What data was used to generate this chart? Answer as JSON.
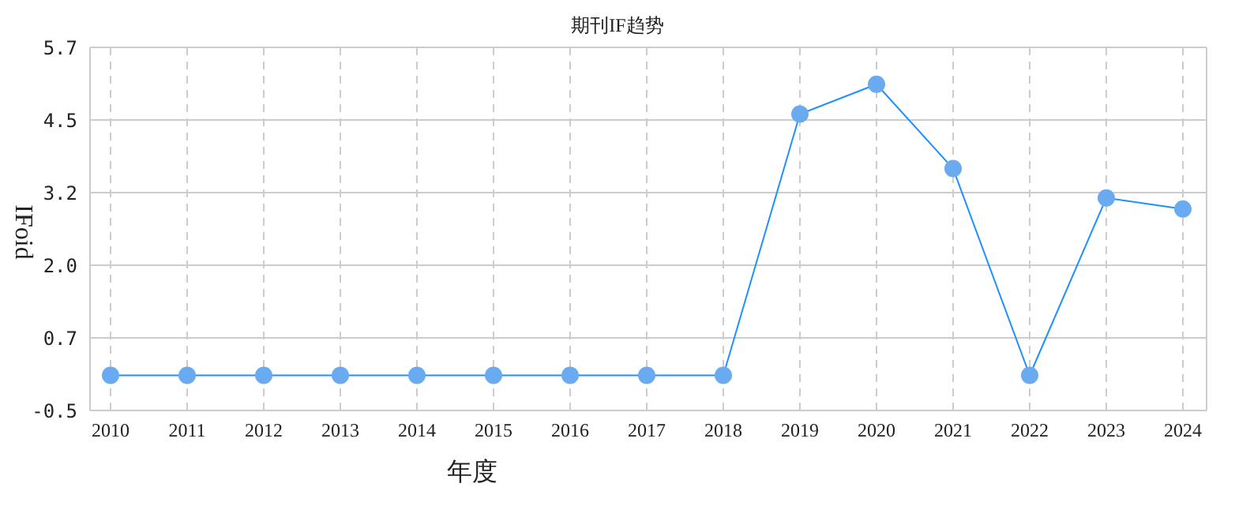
{
  "chart_data": {
    "type": "line",
    "title": "期刊IF趋势",
    "xlabel": "年度",
    "ylabel": "IFoid",
    "categories": [
      "2010",
      "2011",
      "2012",
      "2013",
      "2014",
      "2015",
      "2016",
      "2017",
      "2018",
      "2019",
      "2020",
      "2021",
      "2022",
      "2023",
      "2024"
    ],
    "series": [
      {
        "color": "#1e90ff",
        "values": [
          0.1,
          0.1,
          0.1,
          0.1,
          0.1,
          0.1,
          0.1,
          0.1,
          0.1,
          4.56,
          5.07,
          3.63,
          0.1,
          3.13,
          2.94
        ]
      }
    ],
    "ylim": [
      -0.5,
      5.7
    ],
    "yticks": [
      -0.5,
      {
        "value": 0.74,
        "label": "0.7"
      },
      {
        "value": 1.98,
        "label": "2.0"
      },
      {
        "value": 3.22,
        "label": "3.2"
      },
      {
        "value": 4.46,
        "label": "4.5"
      },
      5.7
    ],
    "grid": true,
    "marker": "circle",
    "line_style": "solid"
  }
}
